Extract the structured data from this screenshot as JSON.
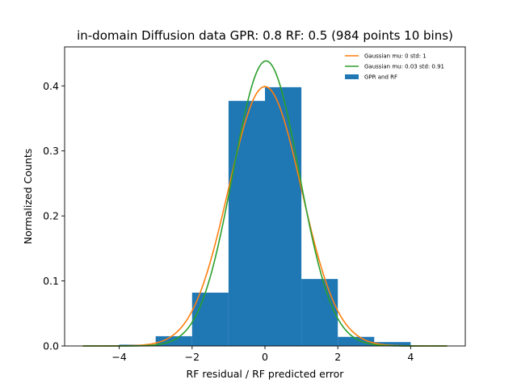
{
  "chart_data": {
    "type": "bar",
    "title": "in-domain Diffusion data GPR: 0.8 RF: 0.5 (984 points 10 bins)",
    "xlabel": "RF residual / RF predicted error",
    "ylabel": "Normalized Counts",
    "xlim": [
      -5.5,
      5.5
    ],
    "ylim": [
      0,
      0.46
    ],
    "xticks": [
      -4,
      -2,
      0,
      2,
      4
    ],
    "yticks": [
      0.0,
      0.1,
      0.2,
      0.3,
      0.4
    ],
    "xtick_labels": [
      "−4",
      "−2",
      "0",
      "2",
      "4"
    ],
    "ytick_labels": [
      "0.0",
      "0.1",
      "0.2",
      "0.3",
      "0.4"
    ],
    "grid": false,
    "legend_position": "top-right",
    "histogram": {
      "name": "GPR and RF",
      "color": "#1f77b4",
      "bins": [
        {
          "x0": -4.0,
          "x1": -3.0,
          "value": 0.002
        },
        {
          "x0": -3.0,
          "x1": -2.0,
          "value": 0.015
        },
        {
          "x0": -2.0,
          "x1": -1.0,
          "value": 0.082
        },
        {
          "x0": -1.0,
          "x1": 0.0,
          "value": 0.377
        },
        {
          "x0": 0.0,
          "x1": 1.0,
          "value": 0.398
        },
        {
          "x0": 1.0,
          "x1": 2.0,
          "value": 0.103
        },
        {
          "x0": 2.0,
          "x1": 3.0,
          "value": 0.014
        },
        {
          "x0": 3.0,
          "x1": 4.0,
          "value": 0.006
        }
      ]
    },
    "series": [
      {
        "name": "Gaussian mu: 0 std: 1",
        "type": "line",
        "mu": 0,
        "std": 1,
        "color": "#ff7f0e",
        "x_range": [
          -5,
          5
        ]
      },
      {
        "name": "Gaussian mu: 0.03 std: 0.91",
        "type": "line",
        "mu": 0.03,
        "std": 0.91,
        "color": "#2ca02c",
        "x_range": [
          -5,
          5
        ]
      }
    ]
  }
}
